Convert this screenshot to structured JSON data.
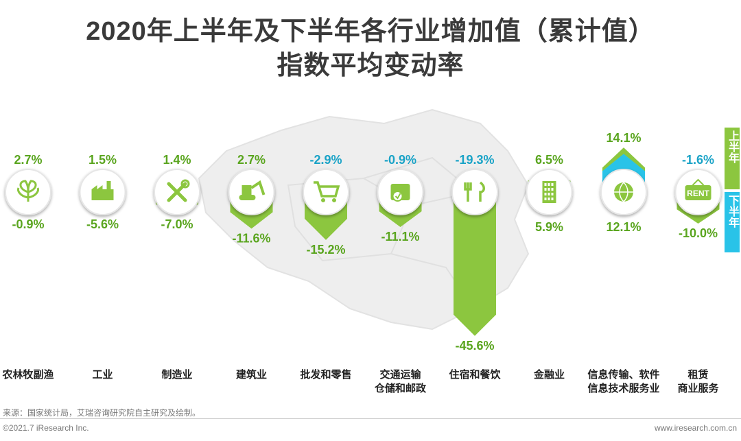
{
  "title_line1": "2020年上半年及下半年各行业增加值（累计值）",
  "title_line2": "指数平均变动率",
  "legend": {
    "first_half": "上半年",
    "second_half": "下半年"
  },
  "colors": {
    "green": "#8cc63f",
    "blue": "#29c3e8",
    "green_text": "#5aa51f",
    "blue_text": "#1aa3c7"
  },
  "chart_data": {
    "type": "bar",
    "categories": [
      "农林牧副渔",
      "工业",
      "制造业",
      "建筑业",
      "批发和零售",
      "交通运输\n仓储和邮政",
      "住宿和餐饮",
      "金融业",
      "信息传输、软件\n信息技术服务业",
      "租赁\n商业服务"
    ],
    "category_icons": [
      "leaves-icon",
      "factory-icon",
      "tools-icon",
      "excavator-icon",
      "shopping-cart-icon",
      "package-icon",
      "fork-knife-icon",
      "building-icon",
      "globe-icon",
      "rent-sign-icon"
    ],
    "series": [
      {
        "name": "上半年",
        "values": [
          2.7,
          1.5,
          1.4,
          2.7,
          -2.9,
          -0.9,
          -19.3,
          6.5,
          14.1,
          -1.6
        ],
        "labels": [
          "2.7%",
          "1.5%",
          "1.4%",
          "2.7%",
          "-2.9%",
          "-0.9%",
          "-19.3%",
          "6.5%",
          "14.1%",
          "-1.6%"
        ]
      },
      {
        "name": "下半年",
        "values": [
          -0.9,
          -5.6,
          -7.0,
          -11.6,
          -15.2,
          -11.1,
          -45.6,
          5.9,
          12.1,
          -10.0
        ],
        "labels": [
          "-0.9%",
          "-5.6%",
          "-7.0%",
          "-11.6%",
          "-15.2%",
          "-11.1%",
          "-45.6%",
          "5.9%",
          "12.1%",
          "-10.0%"
        ]
      }
    ]
  },
  "footer": {
    "source": "来源：国家统计局，艾瑞咨询研究院自主研究及绘制。",
    "copyright": "©2021.7 iResearch Inc.",
    "website": "www.iresearch.com.cn"
  }
}
